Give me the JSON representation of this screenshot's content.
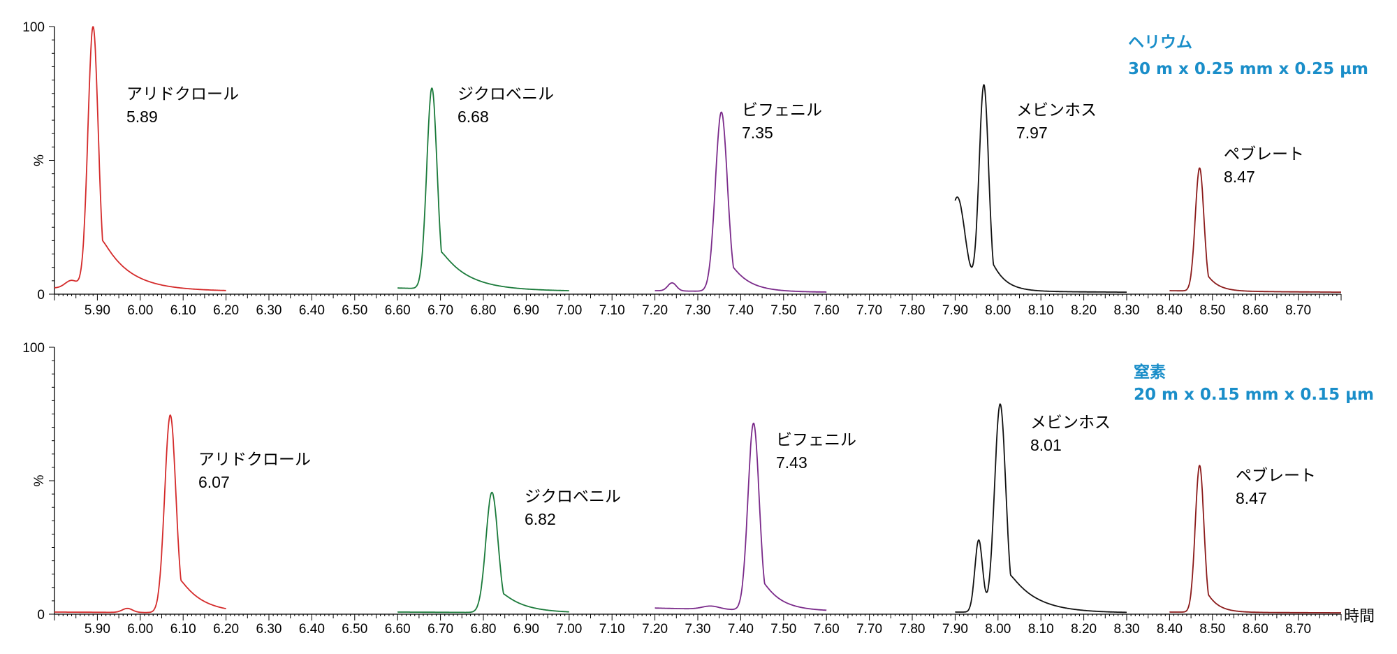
{
  "colors": {
    "red": "#d42a2a",
    "green": "#1a7a3a",
    "purple": "#7a2a8a",
    "black": "#111111",
    "maroon": "#8b1a1a",
    "condition": "#1a8ec9"
  },
  "chart_data": [
    {
      "type": "line",
      "title": "",
      "ylabel": "%",
      "xlabel": "",
      "xlim": [
        5.8,
        8.8
      ],
      "ylim": [
        0,
        100
      ],
      "yticks": [
        "0",
        "100"
      ],
      "xticks": [
        "5.90",
        "6.00",
        "6.10",
        "6.20",
        "6.30",
        "6.40",
        "6.50",
        "6.60",
        "6.70",
        "6.80",
        "6.90",
        "7.00",
        "7.10",
        "7.20",
        "7.30",
        "7.40",
        "7.50",
        "7.60",
        "7.70",
        "7.80",
        "7.90",
        "8.00",
        "8.10",
        "8.20",
        "8.30",
        "8.40",
        "8.50",
        "8.60",
        "8.70"
      ],
      "condition": {
        "gas": "ヘリウム",
        "column": "30 m x 0.25 mm x 0.25 µm"
      },
      "series": [
        {
          "name": "アリドクロール",
          "rt": "5.89",
          "color": "red",
          "segment": [
            5.8,
            6.2
          ],
          "baseline": 2,
          "peaks": [
            {
              "c": 5.89,
              "h": 98,
              "w": 0.012,
              "tail": 0.06
            },
            {
              "c": 5.84,
              "h": 3,
              "w": 0.015,
              "tail": 0.01
            }
          ]
        },
        {
          "name": "ジクロベニル",
          "rt": "6.68",
          "color": "green",
          "segment": [
            6.6,
            7.0
          ],
          "baseline": 2,
          "peaks": [
            {
              "c": 6.68,
              "h": 75,
              "w": 0.012,
              "tail": 0.06
            }
          ]
        },
        {
          "name": "ビフェニル",
          "rt": "7.35",
          "color": "purple",
          "segment": [
            7.2,
            7.6
          ],
          "baseline": 1,
          "peaks": [
            {
              "c": 7.355,
              "h": 67,
              "w": 0.014,
              "tail": 0.04
            },
            {
              "c": 7.24,
              "h": 3,
              "w": 0.01,
              "tail": 0.005
            }
          ]
        },
        {
          "name": "メビンホス",
          "rt": "7.97",
          "color": "black",
          "segment": [
            7.9,
            8.3
          ],
          "baseline": 1,
          "peaks": [
            {
              "c": 7.967,
              "h": 77,
              "w": 0.011,
              "tail": 0.03
            },
            {
              "c": 7.905,
              "h": 35,
              "w": 0.018,
              "tail": 0.005
            }
          ]
        },
        {
          "name": "ペブレート",
          "rt": "8.47",
          "color": "maroon",
          "segment": [
            8.4,
            8.8
          ],
          "baseline": 1,
          "peaks": [
            {
              "c": 8.47,
              "h": 46,
              "w": 0.01,
              "tail": 0.025
            }
          ]
        }
      ]
    },
    {
      "type": "line",
      "title": "",
      "ylabel": "%",
      "xlabel": "時間",
      "xlim": [
        5.8,
        8.8
      ],
      "ylim": [
        0,
        100
      ],
      "yticks": [
        "0",
        "100"
      ],
      "xticks": [
        "5.90",
        "6.00",
        "6.10",
        "6.20",
        "6.30",
        "6.40",
        "6.50",
        "6.60",
        "6.70",
        "6.80",
        "6.90",
        "7.00",
        "7.10",
        "7.20",
        "7.30",
        "7.40",
        "7.50",
        "7.60",
        "7.70",
        "7.80",
        "7.90",
        "8.00",
        "8.10",
        "8.20",
        "8.30",
        "8.40",
        "8.50",
        "8.60",
        "8.70"
      ],
      "condition": {
        "gas": "窒素",
        "column": "20 m x 0.15 mm x 0.15 µm"
      },
      "series": [
        {
          "name": "アリドクロール",
          "rt": "6.07",
          "color": "red",
          "segment": [
            5.8,
            6.2
          ],
          "baseline": 0.5,
          "peaks": [
            {
              "c": 6.07,
              "h": 74,
              "w": 0.013,
              "tail": 0.05
            },
            {
              "c": 5.97,
              "h": 1.5,
              "w": 0.012,
              "tail": 0.005
            }
          ]
        },
        {
          "name": "ジクロベニル",
          "rt": "6.82",
          "color": "green",
          "segment": [
            6.6,
            7.0
          ],
          "baseline": 0.5,
          "peaks": [
            {
              "c": 6.82,
              "h": 45,
              "w": 0.014,
              "tail": 0.05
            }
          ]
        },
        {
          "name": "ビフェニル",
          "rt": "7.43",
          "color": "purple",
          "segment": [
            7.2,
            7.6
          ],
          "baseline": 2,
          "peaks": [
            {
              "c": 7.43,
              "h": 70,
              "w": 0.013,
              "tail": 0.04
            },
            {
              "c": 7.33,
              "h": 1.2,
              "w": 0.02,
              "tail": 0.005
            }
          ]
        },
        {
          "name": "メビンホス",
          "rt": "8.01",
          "color": "black",
          "segment": [
            7.9,
            8.3
          ],
          "baseline": 0.5,
          "peaks": [
            {
              "c": 8.005,
              "h": 78,
              "w": 0.013,
              "tail": 0.06
            },
            {
              "c": 7.955,
              "h": 27,
              "w": 0.009,
              "tail": 0.01
            }
          ]
        },
        {
          "name": "ペブレート",
          "rt": "8.47",
          "color": "maroon",
          "segment": [
            8.4,
            8.8
          ],
          "baseline": 0.5,
          "peaks": [
            {
              "c": 8.47,
              "h": 55,
              "w": 0.01,
              "tail": 0.025
            }
          ]
        }
      ]
    }
  ]
}
